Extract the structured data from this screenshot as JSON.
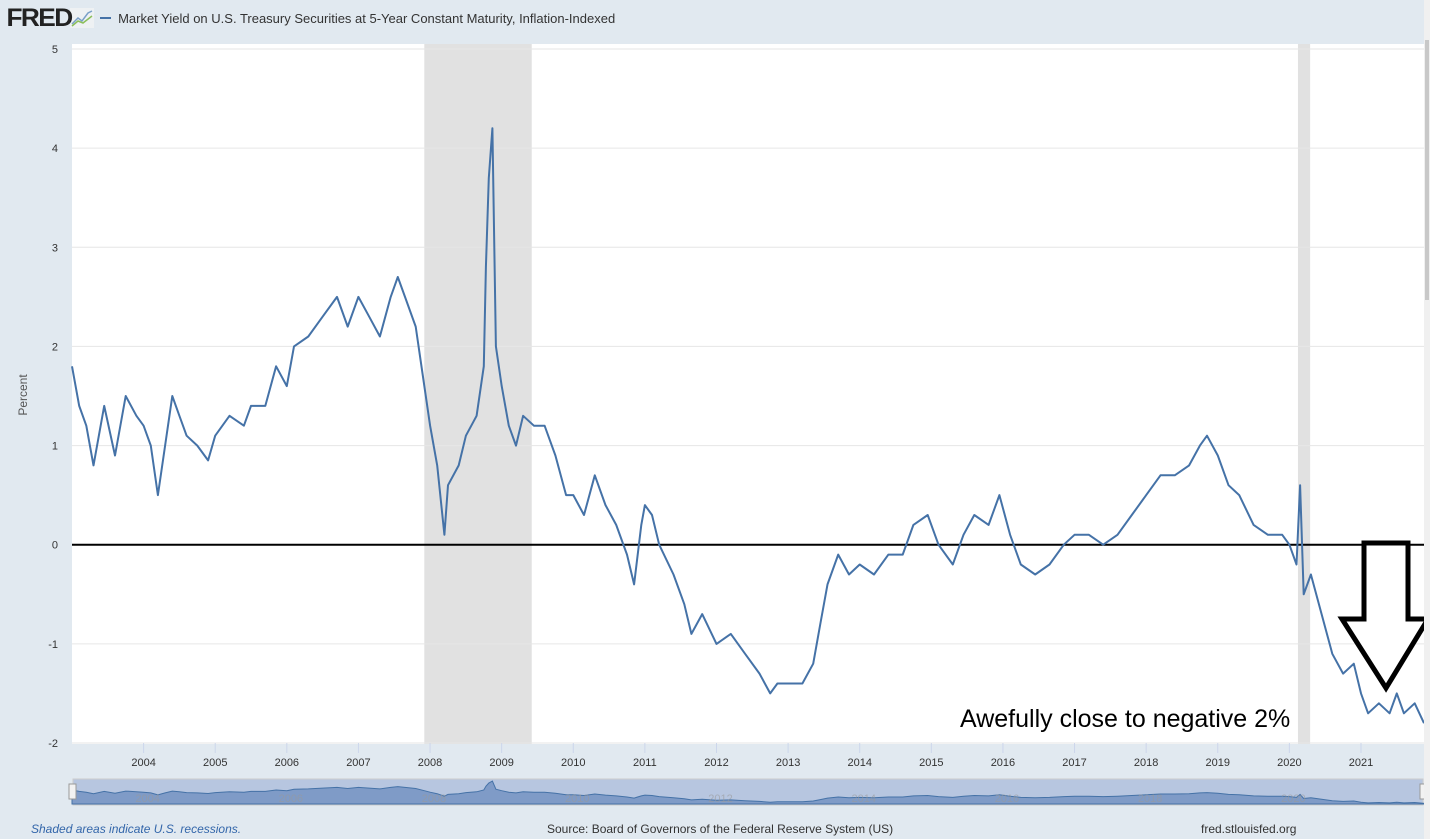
{
  "header": {
    "logo": "FRED",
    "series_title": "Market Yield on U.S. Treasury Securities at 5-Year Constant Maturity, Inflation-Indexed"
  },
  "footer": {
    "recession_note": "Shaded areas indicate U.S. recessions.",
    "source": "Source: Board of Governors of the Federal Reserve System (US)",
    "site": "fred.stlouisfed.org"
  },
  "annotation": {
    "text": "Awefully close to negative 2%",
    "arrow": "down-arrow"
  },
  "colors": {
    "series": "#4572a7",
    "recession": "#e1e1e1",
    "background": "#e1e9f0",
    "navigator": "#7f9bc7"
  },
  "chart_data": {
    "type": "line",
    "title": "Market Yield on U.S. Treasury Securities at 5-Year Constant Maturity, Inflation-Indexed",
    "xlabel": "",
    "ylabel": "Percent",
    "xlim": [
      2003.0,
      2021.88
    ],
    "ylim": [
      -2,
      5
    ],
    "yticks": [
      -2,
      -1,
      0,
      1,
      2,
      3,
      4,
      5
    ],
    "xticks": [
      "2004",
      "2005",
      "2006",
      "2007",
      "2008",
      "2009",
      "2010",
      "2011",
      "2012",
      "2013",
      "2014",
      "2015",
      "2016",
      "2017",
      "2018",
      "2019",
      "2020",
      "2021"
    ],
    "navigator_ticks": [
      "2004",
      "2006",
      "2008",
      "2010",
      "2012",
      "2014",
      "2016",
      "2018",
      "2020"
    ],
    "grid": true,
    "reference_line": 0,
    "recessions": [
      [
        2007.92,
        2009.42
      ],
      [
        2020.12,
        2020.29
      ]
    ],
    "series": [
      {
        "x": [
          2003.0,
          2003.1,
          2003.2,
          2003.3,
          2003.45,
          2003.6,
          2003.75,
          2003.9,
          2004.0,
          2004.1,
          2004.2,
          2004.3,
          2004.4,
          2004.5,
          2004.6,
          2004.75,
          2004.9,
          2005.0,
          2005.2,
          2005.4,
          2005.5,
          2005.7,
          2005.85,
          2006.0,
          2006.1,
          2006.3,
          2006.5,
          2006.7,
          2006.85,
          2007.0,
          2007.15,
          2007.3,
          2007.45,
          2007.55,
          2007.65,
          2007.8,
          2007.9,
          2008.0,
          2008.1,
          2008.2,
          2008.25,
          2008.4,
          2008.5,
          2008.65,
          2008.75,
          2008.78,
          2008.82,
          2008.87,
          2008.92,
          2009.0,
          2009.1,
          2009.2,
          2009.3,
          2009.45,
          2009.6,
          2009.75,
          2009.9,
          2010.0,
          2010.15,
          2010.3,
          2010.45,
          2010.6,
          2010.75,
          2010.85,
          2010.95,
          2011.0,
          2011.1,
          2011.2,
          2011.4,
          2011.55,
          2011.65,
          2011.8,
          2012.0,
          2012.2,
          2012.4,
          2012.6,
          2012.75,
          2012.85,
          2013.0,
          2013.2,
          2013.35,
          2013.45,
          2013.55,
          2013.7,
          2013.85,
          2014.0,
          2014.2,
          2014.4,
          2014.6,
          2014.75,
          2014.95,
          2015.1,
          2015.3,
          2015.45,
          2015.6,
          2015.8,
          2015.95,
          2016.1,
          2016.25,
          2016.45,
          2016.65,
          2016.85,
          2017.0,
          2017.2,
          2017.4,
          2017.6,
          2017.8,
          2018.0,
          2018.2,
          2018.4,
          2018.6,
          2018.75,
          2018.85,
          2019.0,
          2019.15,
          2019.3,
          2019.5,
          2019.7,
          2019.9,
          2020.0,
          2020.1,
          2020.15,
          2020.2,
          2020.3,
          2020.45,
          2020.6,
          2020.75,
          2020.9,
          2021.0,
          2021.1,
          2021.25,
          2021.4,
          2021.5,
          2021.6,
          2021.75,
          2021.88
        ],
        "y": [
          1.8,
          1.4,
          1.2,
          0.8,
          1.4,
          0.9,
          1.5,
          1.3,
          1.2,
          1.0,
          0.5,
          1.0,
          1.5,
          1.3,
          1.1,
          1.0,
          0.85,
          1.1,
          1.3,
          1.2,
          1.4,
          1.4,
          1.8,
          1.6,
          2.0,
          2.1,
          2.3,
          2.5,
          2.2,
          2.5,
          2.3,
          2.1,
          2.5,
          2.7,
          2.5,
          2.2,
          1.7,
          1.2,
          0.8,
          0.1,
          0.6,
          0.8,
          1.1,
          1.3,
          1.8,
          2.8,
          3.7,
          4.2,
          2.0,
          1.6,
          1.2,
          1.0,
          1.3,
          1.2,
          1.2,
          0.9,
          0.5,
          0.5,
          0.3,
          0.7,
          0.4,
          0.2,
          -0.1,
          -0.4,
          0.2,
          0.4,
          0.3,
          0.0,
          -0.3,
          -0.6,
          -0.9,
          -0.7,
          -1.0,
          -0.9,
          -1.1,
          -1.3,
          -1.5,
          -1.4,
          -1.4,
          -1.4,
          -1.2,
          -0.8,
          -0.4,
          -0.1,
          -0.3,
          -0.2,
          -0.3,
          -0.1,
          -0.1,
          0.2,
          0.3,
          0.0,
          -0.2,
          0.1,
          0.3,
          0.2,
          0.5,
          0.1,
          -0.2,
          -0.3,
          -0.2,
          0.0,
          0.1,
          0.1,
          0.0,
          0.1,
          0.3,
          0.5,
          0.7,
          0.7,
          0.8,
          1.0,
          1.1,
          0.9,
          0.6,
          0.5,
          0.2,
          0.1,
          0.1,
          0.0,
          -0.2,
          0.6,
          -0.5,
          -0.3,
          -0.7,
          -1.1,
          -1.3,
          -1.2,
          -1.5,
          -1.7,
          -1.6,
          -1.7,
          -1.5,
          -1.7,
          -1.6,
          -1.8
        ]
      }
    ]
  }
}
